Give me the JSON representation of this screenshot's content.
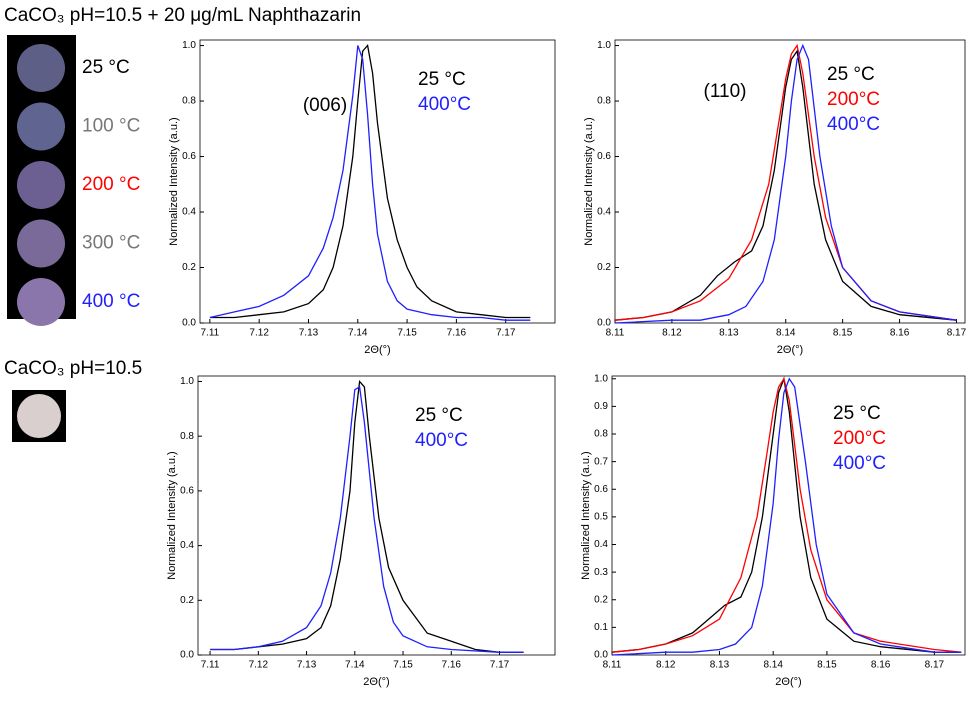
{
  "title": "CaCO₃ pH=10.5 + 20 μg/mL Naphthazarin",
  "samples": [
    {
      "label": "25 °C",
      "color": "#000000"
    },
    {
      "label": "100 °C",
      "color": "#777777"
    },
    {
      "label": "200 °C",
      "color": "#ff0000"
    },
    {
      "label": "300 °C",
      "color": "#777777"
    },
    {
      "label": "400 °C",
      "color": "#2020ff"
    }
  ],
  "reference_title": "CaCO₃ pH=10.5",
  "chart_data": [
    {
      "type": "line",
      "annotation": "(006)",
      "xlabel": "2Θ(°)",
      "ylabel": "Normalized Intensity (a.u.)",
      "xlim": [
        7.108,
        7.18
      ],
      "xticks": [
        7.11,
        7.12,
        7.13,
        7.14,
        7.15,
        7.16,
        7.17
      ],
      "ylim": [
        0,
        1.02
      ],
      "yticks": [
        {
          "value": 0,
          "label": "0.0"
        },
        {
          "value": 0.2,
          "label": "0.2"
        },
        {
          "value": 0.4,
          "label": "0.4"
        },
        {
          "value": 0.6,
          "label": "0.6"
        },
        {
          "value": 0.8,
          "label": "0.8"
        },
        {
          "value": 1,
          "label": "1.0"
        }
      ],
      "series": [
        {
          "name": "25 °C",
          "color": "#000000",
          "x": [
            7.11,
            7.115,
            7.12,
            7.125,
            7.13,
            7.133,
            7.135,
            7.137,
            7.139,
            7.14,
            7.141,
            7.142,
            7.143,
            7.144,
            7.146,
            7.148,
            7.15,
            7.152,
            7.155,
            7.16,
            7.165,
            7.17,
            7.175
          ],
          "values": [
            0.02,
            0.02,
            0.03,
            0.04,
            0.07,
            0.12,
            0.2,
            0.35,
            0.6,
            0.8,
            0.98,
            1.0,
            0.9,
            0.72,
            0.45,
            0.3,
            0.2,
            0.13,
            0.08,
            0.04,
            0.03,
            0.02,
            0.02
          ]
        },
        {
          "name": "400°C",
          "color": "#2020ff",
          "x": [
            7.11,
            7.115,
            7.12,
            7.125,
            7.13,
            7.133,
            7.135,
            7.137,
            7.139,
            7.14,
            7.141,
            7.142,
            7.143,
            7.144,
            7.146,
            7.148,
            7.15,
            7.155,
            7.16,
            7.165,
            7.17,
            7.175
          ],
          "values": [
            0.02,
            0.04,
            0.06,
            0.1,
            0.17,
            0.27,
            0.38,
            0.55,
            0.82,
            1.0,
            0.95,
            0.75,
            0.5,
            0.32,
            0.15,
            0.08,
            0.05,
            0.03,
            0.02,
            0.02,
            0.01,
            0.01
          ]
        }
      ]
    },
    {
      "type": "line",
      "annotation": "(110)",
      "xlabel": "2Θ(°)",
      "ylabel": "Normalized Intensity (a.u.)",
      "xlim": [
        8.11,
        8.1715
      ],
      "xticks": [
        8.11,
        8.12,
        8.13,
        8.14,
        8.15,
        8.16,
        8.17
      ],
      "ylim": [
        0,
        1.02
      ],
      "yticks": [
        {
          "value": 0,
          "label": "0.0"
        },
        {
          "value": 0.2,
          "label": "0.2"
        },
        {
          "value": 0.4,
          "label": "0.4"
        },
        {
          "value": 0.6,
          "label": "0.6"
        },
        {
          "value": 0.8,
          "label": "0.8"
        },
        {
          "value": 1,
          "label": "1.0"
        }
      ],
      "series": [
        {
          "name": "25 °C",
          "color": "#000000",
          "x": [
            8.11,
            8.115,
            8.12,
            8.125,
            8.128,
            8.131,
            8.134,
            8.136,
            8.138,
            8.14,
            8.141,
            8.142,
            8.143,
            8.145,
            8.147,
            8.15,
            8.155,
            8.16,
            8.17
          ],
          "values": [
            0.01,
            0.02,
            0.04,
            0.1,
            0.17,
            0.22,
            0.26,
            0.35,
            0.55,
            0.85,
            0.95,
            0.98,
            0.85,
            0.5,
            0.3,
            0.15,
            0.06,
            0.03,
            0.01
          ]
        },
        {
          "name": "200°C",
          "color": "#ff0000",
          "x": [
            8.11,
            8.115,
            8.12,
            8.125,
            8.13,
            8.134,
            8.137,
            8.139,
            8.14,
            8.141,
            8.142,
            8.143,
            8.145,
            8.147,
            8.15,
            8.155,
            8.16,
            8.17
          ],
          "values": [
            0.01,
            0.02,
            0.04,
            0.08,
            0.16,
            0.3,
            0.5,
            0.75,
            0.88,
            0.97,
            1.0,
            0.9,
            0.6,
            0.38,
            0.2,
            0.08,
            0.04,
            0.01
          ]
        },
        {
          "name": "400°C",
          "color": "#2020ff",
          "x": [
            8.11,
            8.12,
            8.125,
            8.13,
            8.133,
            8.136,
            8.138,
            8.14,
            8.141,
            8.142,
            8.143,
            8.144,
            8.146,
            8.148,
            8.15,
            8.155,
            8.16,
            8.17
          ],
          "values": [
            0.0,
            0.01,
            0.01,
            0.03,
            0.06,
            0.15,
            0.3,
            0.6,
            0.8,
            0.95,
            1.0,
            0.95,
            0.6,
            0.35,
            0.2,
            0.08,
            0.04,
            0.01
          ]
        }
      ]
    },
    {
      "type": "line",
      "xlabel": "2Θ(°)",
      "ylabel": "Normalized Intensity (a.u.)",
      "xlim": [
        7.1075,
        7.1815
      ],
      "xticks": [
        7.11,
        7.12,
        7.13,
        7.14,
        7.15,
        7.16,
        7.17
      ],
      "ylim": [
        0,
        1.02
      ],
      "yticks": [
        {
          "value": 0,
          "label": "0.0"
        },
        {
          "value": 0.2,
          "label": "0.2"
        },
        {
          "value": 0.4,
          "label": "0.4"
        },
        {
          "value": 0.6,
          "label": "0.6"
        },
        {
          "value": 0.8,
          "label": "0.8"
        },
        {
          "value": 1,
          "label": "1.0"
        }
      ],
      "series": [
        {
          "name": "25 °C",
          "color": "#000000",
          "x": [
            7.11,
            7.115,
            7.12,
            7.125,
            7.13,
            7.133,
            7.135,
            7.137,
            7.139,
            7.14,
            7.141,
            7.142,
            7.143,
            7.145,
            7.147,
            7.15,
            7.155,
            7.16,
            7.165,
            7.17,
            7.175
          ],
          "values": [
            0.02,
            0.02,
            0.03,
            0.04,
            0.06,
            0.1,
            0.18,
            0.35,
            0.6,
            0.85,
            1.0,
            0.98,
            0.8,
            0.5,
            0.32,
            0.2,
            0.08,
            0.05,
            0.02,
            0.01,
            0.01
          ]
        },
        {
          "name": "400°C",
          "color": "#2020ff",
          "x": [
            7.11,
            7.115,
            7.12,
            7.125,
            7.13,
            7.133,
            7.135,
            7.137,
            7.139,
            7.14,
            7.141,
            7.142,
            7.144,
            7.146,
            7.148,
            7.15,
            7.155,
            7.16,
            7.17,
            7.175
          ],
          "values": [
            0.02,
            0.02,
            0.03,
            0.05,
            0.1,
            0.18,
            0.3,
            0.5,
            0.8,
            0.97,
            0.98,
            0.85,
            0.5,
            0.25,
            0.12,
            0.07,
            0.03,
            0.02,
            0.01,
            0.01
          ]
        }
      ]
    },
    {
      "type": "line",
      "xlabel": "2Θ(°)",
      "ylabel": "Normalized Intensity (a.u.)",
      "xlim": [
        8.11,
        8.1757
      ],
      "xticks": [
        8.11,
        8.12,
        8.13,
        8.14,
        8.15,
        8.16,
        8.17
      ],
      "ylim": [
        0,
        1.01
      ],
      "yticks": [
        {
          "value": 0,
          "label": "0.0"
        },
        {
          "value": 0.1,
          "label": "0.1"
        },
        {
          "value": 0.2,
          "label": "0.2"
        },
        {
          "value": 0.3,
          "label": "0.3"
        },
        {
          "value": 0.4,
          "label": "0.4"
        },
        {
          "value": 0.5,
          "label": "0.5"
        },
        {
          "value": 0.6,
          "label": "0.6"
        },
        {
          "value": 0.7,
          "label": "0.7"
        },
        {
          "value": 0.8,
          "label": "0.8"
        },
        {
          "value": 0.9,
          "label": "0.9"
        },
        {
          "value": 1,
          "label": "1.0"
        }
      ],
      "series": [
        {
          "name": "25 °C",
          "color": "#000000",
          "x": [
            8.11,
            8.115,
            8.12,
            8.125,
            8.128,
            8.131,
            8.134,
            8.136,
            8.138,
            8.14,
            8.141,
            8.142,
            8.143,
            8.145,
            8.147,
            8.15,
            8.155,
            8.16,
            8.17,
            8.175
          ],
          "values": [
            0.01,
            0.02,
            0.04,
            0.08,
            0.13,
            0.18,
            0.21,
            0.3,
            0.5,
            0.8,
            0.95,
            1.0,
            0.88,
            0.5,
            0.28,
            0.13,
            0.05,
            0.03,
            0.01,
            0.01
          ]
        },
        {
          "name": "200°C",
          "color": "#ff0000",
          "x": [
            8.11,
            8.115,
            8.12,
            8.125,
            8.13,
            8.134,
            8.137,
            8.139,
            8.14,
            8.141,
            8.142,
            8.143,
            8.145,
            8.147,
            8.15,
            8.155,
            8.16,
            8.17,
            8.175
          ],
          "values": [
            0.01,
            0.02,
            0.04,
            0.07,
            0.13,
            0.28,
            0.5,
            0.75,
            0.88,
            0.97,
            1.0,
            0.92,
            0.6,
            0.38,
            0.2,
            0.08,
            0.05,
            0.02,
            0.01
          ]
        },
        {
          "name": "400°C",
          "color": "#2020ff",
          "x": [
            8.11,
            8.12,
            8.125,
            8.13,
            8.133,
            8.136,
            8.138,
            8.14,
            8.141,
            8.142,
            8.143,
            8.144,
            8.146,
            8.148,
            8.15,
            8.155,
            8.16,
            8.17,
            8.175
          ],
          "values": [
            0,
            0.01,
            0.01,
            0.02,
            0.04,
            0.1,
            0.25,
            0.55,
            0.78,
            0.95,
            1.0,
            0.97,
            0.7,
            0.4,
            0.22,
            0.08,
            0.04,
            0.01,
            0.01
          ]
        }
      ]
    }
  ]
}
